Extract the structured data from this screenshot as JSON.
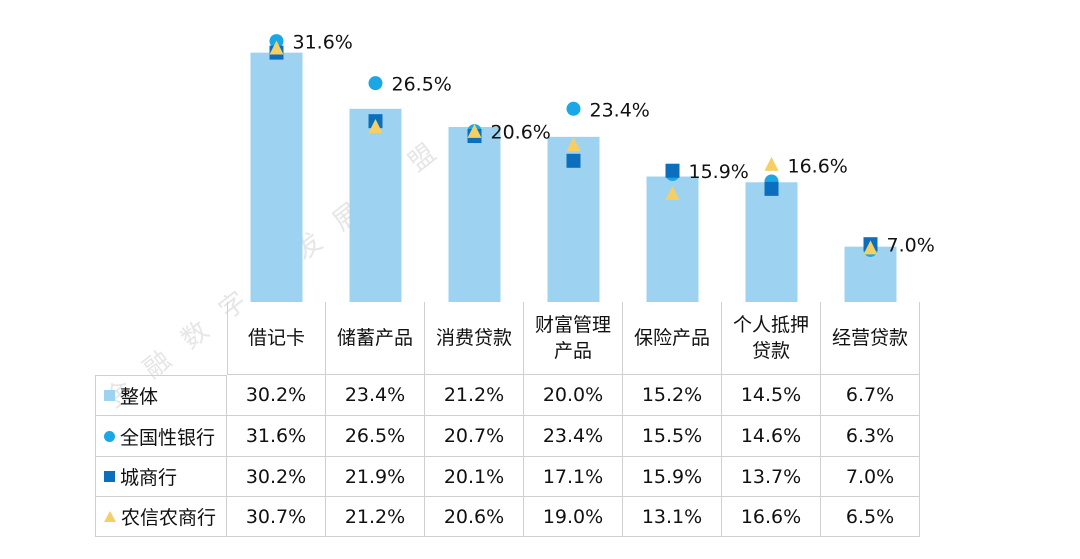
{
  "chart_data": {
    "type": "bar",
    "watermark": "金融数字化发展联盟",
    "categories": [
      "借记卡",
      "储蓄产品",
      "消费贷款",
      "财富管理产品",
      "保险产品",
      "个人抵押贷款",
      "经营贷款"
    ],
    "ylim": [
      0,
      35
    ],
    "series": [
      {
        "name": "整体",
        "color": "#9dd3f0",
        "marker": "bar",
        "values": [
          30.2,
          23.4,
          21.2,
          20.0,
          15.2,
          14.5,
          6.7
        ],
        "value_labels": [
          "30.2%",
          "23.4%",
          "21.2%",
          "20.0%",
          "15.2%",
          "14.5%",
          "6.7%"
        ]
      },
      {
        "name": "全国性银行",
        "color": "#1aa7e6",
        "marker": "circle",
        "values": [
          31.6,
          26.5,
          20.7,
          23.4,
          15.5,
          14.6,
          6.3
        ],
        "value_labels": [
          "31.6%",
          "26.5%",
          "20.7%",
          "23.4%",
          "15.5%",
          "14.6%",
          "6.3%"
        ]
      },
      {
        "name": "城商行",
        "color": "#0b6fbd",
        "marker": "square",
        "values": [
          30.2,
          21.9,
          20.1,
          17.1,
          15.9,
          13.7,
          7.0
        ],
        "value_labels": [
          "30.2%",
          "21.9%",
          "20.1%",
          "17.1%",
          "15.9%",
          "13.7%",
          "7.0%"
        ]
      },
      {
        "name": "农信农商行",
        "color": "#f5cf63",
        "marker": "triangle",
        "values": [
          30.7,
          21.2,
          20.6,
          19.0,
          13.1,
          16.6,
          6.5
        ],
        "value_labels": [
          "30.7%",
          "21.2%",
          "20.6%",
          "19.0%",
          "13.1%",
          "16.6%",
          "6.5%"
        ]
      }
    ],
    "annotations": [
      "31.6%",
      "26.5%",
      "20.6%",
      "23.4%",
      "15.9%",
      "16.6%",
      "7.0%"
    ]
  }
}
